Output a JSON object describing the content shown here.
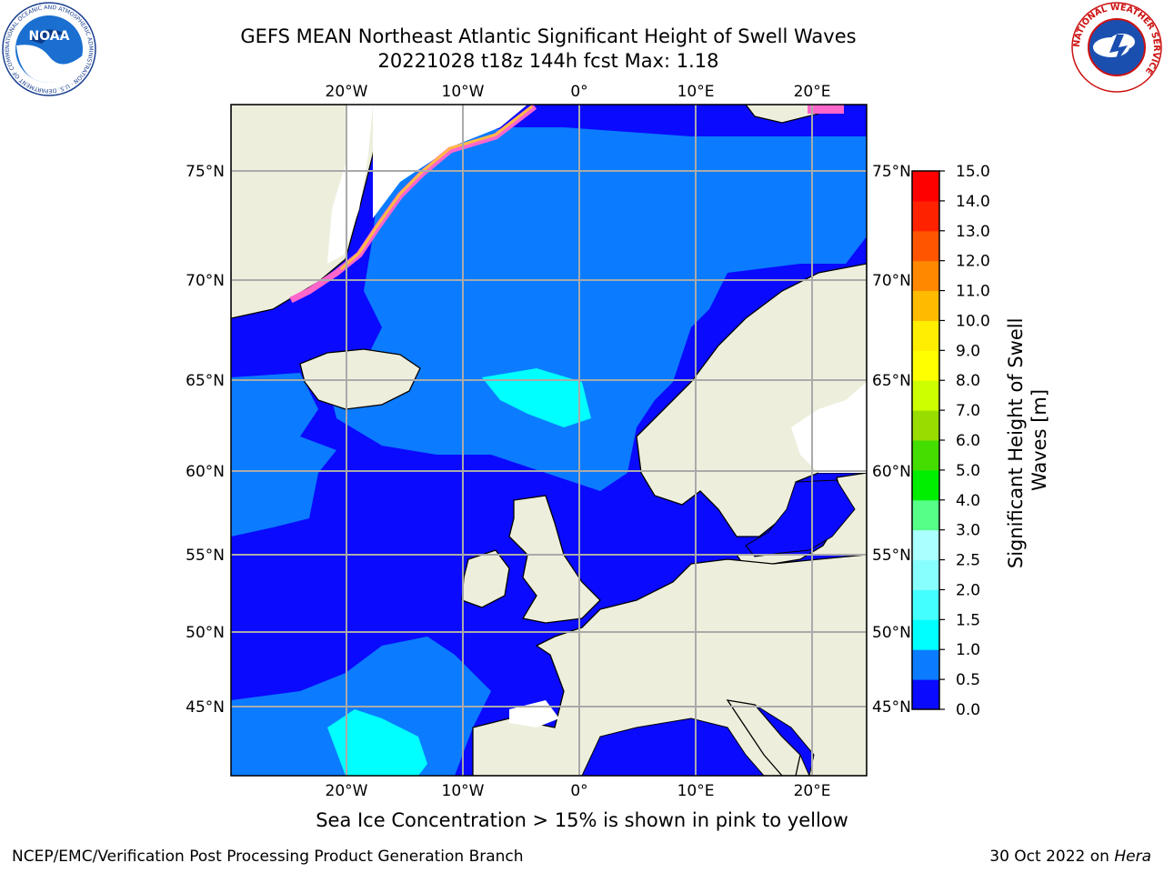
{
  "title": {
    "line1": "GEFS MEAN Northeast Atlantic Significant Height of Swell Waves",
    "line2": "20221028 t18z 144h fcst   Max: 1.18"
  },
  "map": {
    "lon_labels": [
      "20°W",
      "10°W",
      "0°",
      "10°E",
      "20°E"
    ],
    "lat_labels": [
      "75°N",
      "70°N",
      "65°N",
      "60°N",
      "55°N",
      "50°N",
      "45°N"
    ],
    "colors": {
      "land": "#eeeedd",
      "ocean_low": "#0a0aff",
      "ocean_mid": "#0b7cff",
      "ocean_high": "#00ffff",
      "sea_ice": "#ff66cc",
      "ice_shelf": "#ffffff",
      "grid": "#aaaaaa"
    }
  },
  "colorbar": {
    "label": "Significant Height of Swell Waves [m]",
    "ticks": [
      "0.0",
      "0.5",
      "1.0",
      "1.5",
      "2.0",
      "2.5",
      "3.0",
      "4.0",
      "5.0",
      "6.0",
      "7.0",
      "8.0",
      "9.0",
      "10.0",
      "11.0",
      "12.0",
      "13.0",
      "14.0",
      "15.0"
    ],
    "colors": [
      "#0a0aff",
      "#0b7cff",
      "#00ffff",
      "#44ffff",
      "#88ffff",
      "#aaffff",
      "#55ff88",
      "#00ee00",
      "#44dd00",
      "#99dd00",
      "#ccff00",
      "#ffff00",
      "#ffee00",
      "#ffbb00",
      "#ff8800",
      "#ff5500",
      "#ff2200",
      "#ff0000"
    ]
  },
  "logos": {
    "noaa_text": "NOAA",
    "noaa_ring": "NATIONAL OCEANIC AND ATMOSPHERIC ADMINISTRATION · U.S. DEPARTMENT OF COMMERCE ·",
    "nws_ring": "NATIONAL WEATHER SERVICE"
  },
  "caption": "Sea Ice Concentration > 15% is shown in pink to yellow",
  "footer": {
    "left": "NCEP/EMC/Verification Post Processing Product Generation Branch",
    "right_prefix": "30 Oct 2022 on ",
    "right_host": "Hera"
  }
}
